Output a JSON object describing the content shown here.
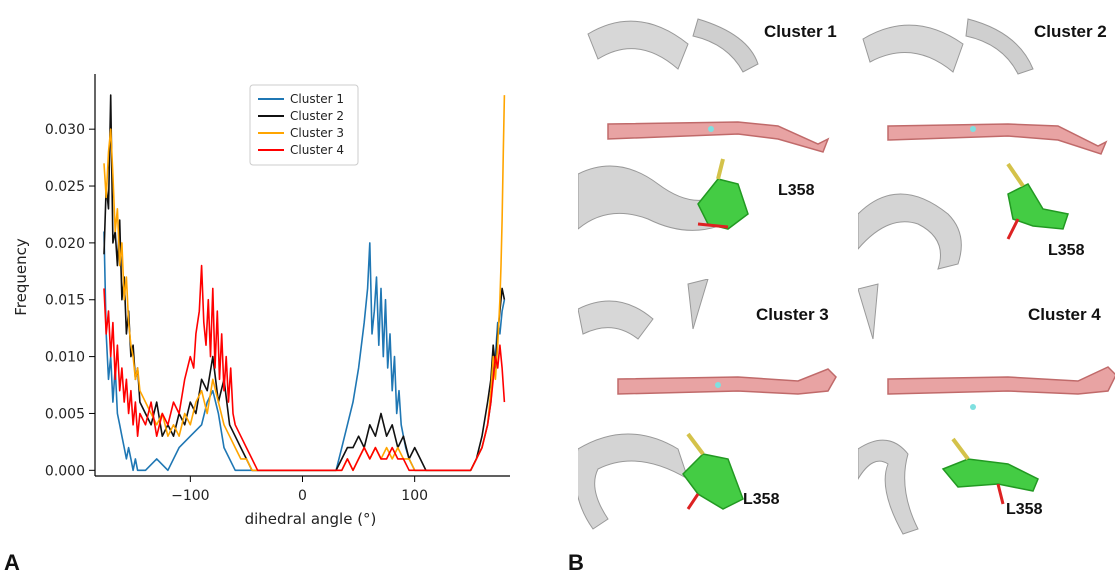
{
  "figure": {
    "panel_a_label": "A",
    "panel_b_label": "B"
  },
  "chart_data": {
    "type": "line",
    "title": "",
    "xlabel": "dihedral angle (°)",
    "ylabel": "Frequency",
    "xlim": [
      -185,
      185
    ],
    "ylim": [
      -0.0005,
      0.0345
    ],
    "xticks": [
      -100,
      0,
      100
    ],
    "xtick_labels": [
      "−100",
      "0",
      "100"
    ],
    "yticks": [
      0.0,
      0.005,
      0.01,
      0.015,
      0.02,
      0.025,
      0.03
    ],
    "ytick_labels": [
      "0.000",
      "0.005",
      "0.010",
      "0.015",
      "0.020",
      "0.025",
      "0.030"
    ],
    "grid": false,
    "legend": "top-center",
    "series": [
      {
        "name": "Cluster 1",
        "color": "#1f77b4",
        "x": [
          -177,
          -175,
          -173,
          -171,
          -169,
          -167,
          -165,
          -163,
          -161,
          -159,
          -157,
          -155,
          -153,
          -151,
          -149,
          -147,
          -145,
          -140,
          -130,
          -120,
          -110,
          -100,
          -90,
          -85,
          -80,
          -75,
          -70,
          -60,
          -50,
          -45,
          -40,
          30,
          35,
          40,
          45,
          50,
          55,
          58,
          60,
          62,
          64,
          66,
          68,
          70,
          72,
          74,
          76,
          78,
          80,
          82,
          84,
          86,
          88,
          90,
          92,
          95,
          100,
          105,
          110,
          150,
          155,
          160,
          165,
          168,
          170,
          172,
          174,
          176,
          178,
          180
        ],
        "y": [
          0.021,
          0.012,
          0.008,
          0.01,
          0.006,
          0.009,
          0.005,
          0.004,
          0.003,
          0.002,
          0.001,
          0.002,
          0.001,
          0.0,
          0.001,
          0.0,
          0.0,
          0.0,
          0.001,
          0.0,
          0.002,
          0.003,
          0.004,
          0.006,
          0.007,
          0.005,
          0.002,
          0.0,
          0.0,
          0.0,
          0.0,
          0.0,
          0.002,
          0.004,
          0.006,
          0.009,
          0.013,
          0.016,
          0.02,
          0.012,
          0.014,
          0.017,
          0.011,
          0.016,
          0.01,
          0.015,
          0.009,
          0.012,
          0.007,
          0.01,
          0.005,
          0.007,
          0.004,
          0.003,
          0.002,
          0.001,
          0.0,
          0.0,
          0.0,
          0.0,
          0.001,
          0.002,
          0.004,
          0.006,
          0.009,
          0.01,
          0.013,
          0.012,
          0.014,
          0.015
        ]
      },
      {
        "name": "Cluster 2",
        "color": "#111111",
        "x": [
          -177,
          -175,
          -173,
          -171,
          -169,
          -167,
          -165,
          -163,
          -161,
          -159,
          -157,
          -155,
          -153,
          -151,
          -149,
          -147,
          -145,
          -140,
          -135,
          -130,
          -125,
          -120,
          -115,
          -110,
          -105,
          -100,
          -95,
          -90,
          -85,
          -80,
          -75,
          -70,
          -65,
          -60,
          -55,
          -50,
          -45,
          -40,
          30,
          35,
          40,
          45,
          50,
          55,
          60,
          65,
          70,
          75,
          80,
          85,
          90,
          95,
          100,
          105,
          110,
          150,
          155,
          160,
          165,
          168,
          170,
          172,
          174,
          176,
          178,
          180
        ],
        "y": [
          0.019,
          0.025,
          0.023,
          0.033,
          0.02,
          0.021,
          0.018,
          0.022,
          0.015,
          0.017,
          0.012,
          0.014,
          0.01,
          0.011,
          0.008,
          0.009,
          0.006,
          0.005,
          0.004,
          0.006,
          0.003,
          0.004,
          0.003,
          0.005,
          0.004,
          0.006,
          0.005,
          0.008,
          0.007,
          0.01,
          0.006,
          0.008,
          0.004,
          0.003,
          0.002,
          0.001,
          0.0,
          0.0,
          0.0,
          0.001,
          0.002,
          0.002,
          0.003,
          0.002,
          0.004,
          0.003,
          0.005,
          0.003,
          0.004,
          0.002,
          0.003,
          0.001,
          0.002,
          0.001,
          0.0,
          0.0,
          0.001,
          0.003,
          0.006,
          0.008,
          0.011,
          0.009,
          0.012,
          0.014,
          0.016,
          0.015
        ]
      },
      {
        "name": "Cluster 3",
        "color": "#ffa500",
        "x": [
          -177,
          -175,
          -173,
          -171,
          -169,
          -167,
          -165,
          -163,
          -161,
          -159,
          -157,
          -155,
          -153,
          -151,
          -149,
          -147,
          -145,
          -140,
          -135,
          -130,
          -125,
          -120,
          -115,
          -110,
          -105,
          -100,
          -95,
          -90,
          -85,
          -80,
          -75,
          -70,
          -65,
          -60,
          -55,
          -50,
          -45,
          -40,
          35,
          40,
          45,
          50,
          55,
          60,
          65,
          70,
          75,
          80,
          85,
          90,
          95,
          100,
          150,
          155,
          160,
          165,
          168,
          170,
          172,
          174,
          175,
          176,
          177,
          178,
          179,
          180
        ],
        "y": [
          0.027,
          0.024,
          0.028,
          0.03,
          0.026,
          0.021,
          0.023,
          0.018,
          0.02,
          0.015,
          0.017,
          0.013,
          0.011,
          0.01,
          0.008,
          0.009,
          0.007,
          0.006,
          0.005,
          0.004,
          0.005,
          0.003,
          0.004,
          0.003,
          0.005,
          0.004,
          0.006,
          0.007,
          0.005,
          0.008,
          0.006,
          0.004,
          0.003,
          0.002,
          0.001,
          0.001,
          0.0,
          0.0,
          0.0,
          0.001,
          0.0,
          0.001,
          0.002,
          0.001,
          0.002,
          0.001,
          0.002,
          0.001,
          0.002,
          0.001,
          0.001,
          0.0,
          0.0,
          0.001,
          0.002,
          0.004,
          0.007,
          0.01,
          0.008,
          0.011,
          0.013,
          0.015,
          0.018,
          0.022,
          0.028,
          0.033
        ]
      },
      {
        "name": "Cluster 4",
        "color": "#ff0000",
        "x": [
          -177,
          -175,
          -173,
          -171,
          -169,
          -167,
          -165,
          -163,
          -161,
          -159,
          -157,
          -155,
          -153,
          -151,
          -149,
          -147,
          -145,
          -140,
          -135,
          -130,
          -125,
          -120,
          -115,
          -110,
          -105,
          -100,
          -97,
          -95,
          -92,
          -90,
          -88,
          -86,
          -84,
          -82,
          -80,
          -78,
          -76,
          -74,
          -72,
          -70,
          -68,
          -66,
          -64,
          -62,
          -60,
          -55,
          -50,
          -45,
          -40,
          35,
          40,
          45,
          50,
          55,
          60,
          65,
          70,
          75,
          80,
          85,
          90,
          95,
          100,
          150,
          155,
          160,
          165,
          168,
          170,
          172,
          174,
          176,
          178,
          180
        ],
        "y": [
          0.016,
          0.012,
          0.014,
          0.01,
          0.013,
          0.008,
          0.011,
          0.007,
          0.009,
          0.006,
          0.008,
          0.005,
          0.007,
          0.004,
          0.006,
          0.003,
          0.005,
          0.004,
          0.006,
          0.003,
          0.005,
          0.004,
          0.006,
          0.005,
          0.008,
          0.01,
          0.009,
          0.012,
          0.014,
          0.018,
          0.013,
          0.011,
          0.015,
          0.01,
          0.016,
          0.009,
          0.014,
          0.008,
          0.012,
          0.007,
          0.01,
          0.006,
          0.009,
          0.005,
          0.004,
          0.003,
          0.002,
          0.001,
          0.0,
          0.0,
          0.001,
          0.0,
          0.001,
          0.002,
          0.001,
          0.002,
          0.001,
          0.001,
          0.002,
          0.001,
          0.001,
          0.0,
          0.0,
          0.0,
          0.001,
          0.002,
          0.004,
          0.006,
          0.008,
          0.01,
          0.009,
          0.011,
          0.009,
          0.006
        ]
      }
    ]
  },
  "panel_b": {
    "cells": [
      {
        "title": "Cluster 1",
        "residue_label": "L358"
      },
      {
        "title": "Cluster 2",
        "residue_label": "L358"
      },
      {
        "title": "Cluster 3",
        "residue_label": "L358"
      },
      {
        "title": "Cluster 4",
        "residue_label": "L358"
      }
    ],
    "colors": {
      "ribbon": "#c9c9c9",
      "heme": "#e08080",
      "residue": "#33cc33",
      "nitrogen": "#3344dd",
      "oxygen": "#dd2222",
      "sulfur": "#d4c24a",
      "iron": "#7fe0e0"
    }
  }
}
